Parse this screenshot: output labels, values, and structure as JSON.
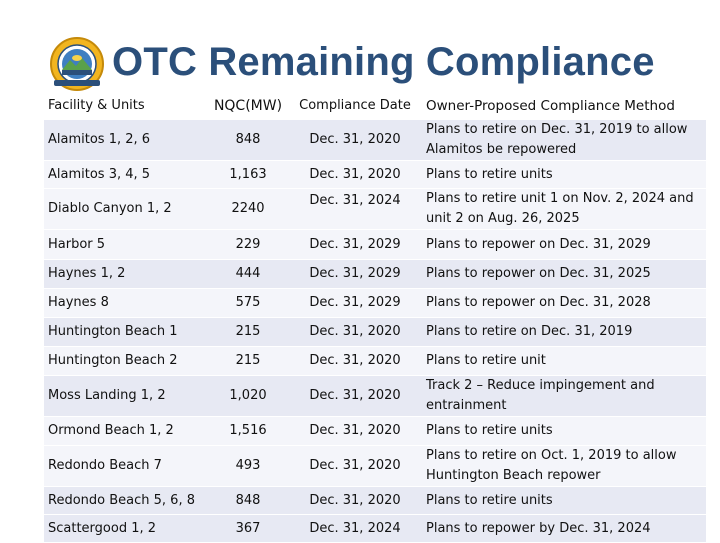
{
  "title": "OTC Remaining Compliance",
  "header": {
    "facility": "Facility & Units",
    "nqc": "NQC(MW)",
    "date": "Compliance Date",
    "method": "Owner-Proposed Compliance Method"
  },
  "rows": [
    {
      "facility": "Alamitos 1, 2, 6",
      "nqc": "848",
      "date": "Dec. 31, 2020",
      "method": [
        "Plans to retire on Dec. 31, 2019 to allow",
        "Alamitos be repowered"
      ]
    },
    {
      "facility": "Alamitos 3, 4, 5",
      "nqc": "1,163",
      "date": "Dec. 31, 2020",
      "method": [
        "Plans to retire units"
      ]
    },
    {
      "facility": "Diablo Canyon 1, 2",
      "nqc": "2240",
      "date": "Dec. 31, 2024",
      "method": [
        "Plans to retire unit 1 on Nov. 2, 2024 and",
        "unit 2 on Aug. 26, 2025"
      ]
    },
    {
      "facility": "Harbor 5",
      "nqc": "229",
      "date": "Dec. 31, 2029",
      "method": [
        "Plans to repower on Dec. 31, 2029"
      ]
    },
    {
      "facility": "Haynes 1, 2",
      "nqc": "444",
      "date": "Dec. 31, 2029",
      "method": [
        "Plans to repower on Dec. 31, 2025"
      ]
    },
    {
      "facility": "Haynes 8",
      "nqc": "575",
      "date": "Dec. 31, 2029",
      "method": [
        "Plans to repower on Dec. 31, 2028"
      ]
    },
    {
      "facility": "Huntington Beach 1",
      "nqc": "215",
      "date": "Dec. 31, 2020",
      "method": [
        "Plans to retire on Dec. 31, 2019"
      ]
    },
    {
      "facility": "Huntington Beach 2",
      "nqc": "215",
      "date": "Dec. 31, 2020",
      "method": [
        "Plans to retire unit"
      ]
    },
    {
      "facility": "Moss Landing 1, 2",
      "nqc": "1,020",
      "date": "Dec. 31, 2020",
      "method": [
        "Track 2 – Reduce impingement and",
        "entrainment"
      ]
    },
    {
      "facility": "Ormond Beach 1, 2",
      "nqc": "1,516",
      "date": "Dec. 31, 2020",
      "method": [
        "Plans to retire units"
      ]
    },
    {
      "facility": "Redondo Beach 7",
      "nqc": "493",
      "date": "Dec. 31, 2020",
      "method": [
        "Plans to retire on Oct. 1, 2019 to allow",
        "Huntington Beach repower"
      ]
    },
    {
      "facility": "Redondo Beach 5, 6, 8",
      "nqc": "848",
      "date": "Dec. 31, 2020",
      "method": [
        "Plans to retire units"
      ]
    },
    {
      "facility": "Scattergood 1, 2",
      "nqc": "367",
      "date": "Dec. 31, 2024",
      "method": [
        "Plans to repower by Dec. 31, 2024"
      ]
    }
  ],
  "colors": {
    "title": "#2b4f7a",
    "row_shade": "#e7e9f3",
    "row_light": "#f4f5fa"
  },
  "icons": {
    "logo": "energy-commission-seal-icon"
  }
}
